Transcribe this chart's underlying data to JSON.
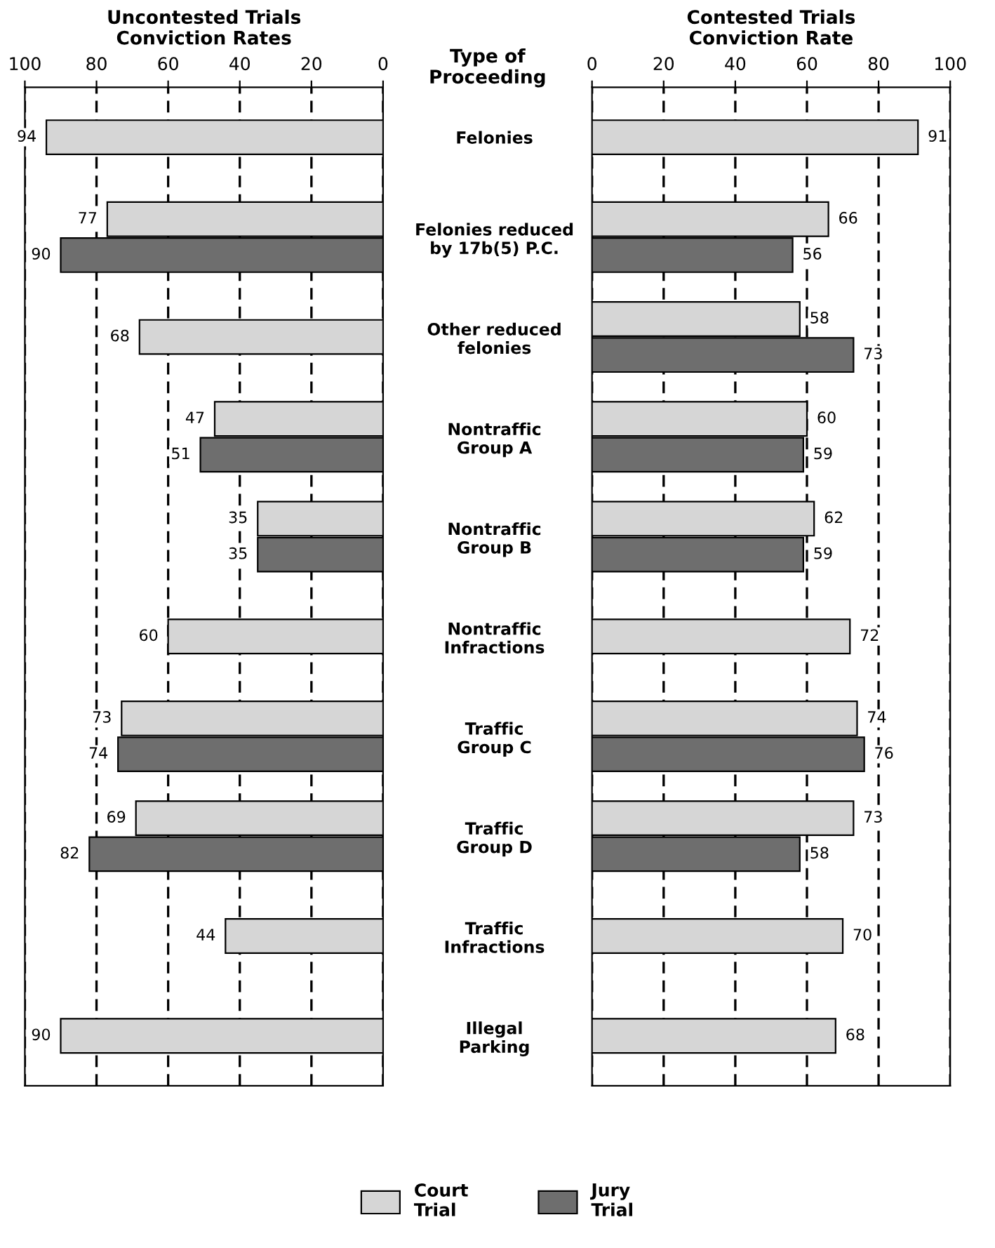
{
  "chart_data": [
    {
      "type": "bar",
      "orientation": "horizontal",
      "title": "Uncontested Trials\nConviction Rates",
      "ylabel": "Type of\nProceeding",
      "categories": [
        "Felonies",
        "Felonies reduced\nby 17b(5) P.C.",
        "Other reduced\nfelonies",
        "Nontraffic\nGroup A",
        "Nontraffic\nGroup B",
        "Nontraffic\nInfractions",
        "Traffic\nGroup C",
        "Traffic\nGroup D",
        "Traffic\nInfractions",
        "Illegal\nParking"
      ],
      "series": [
        {
          "name": "Court\nTrial",
          "color": "#d6d6d6",
          "values": [
            94,
            77,
            68,
            47,
            35,
            60,
            73,
            69,
            44,
            90
          ]
        },
        {
          "name": "Jury\nTrial",
          "color": "#6e6e6e",
          "values": [
            null,
            90,
            null,
            51,
            35,
            null,
            74,
            82,
            null,
            null
          ]
        }
      ],
      "xlim": [
        100,
        0
      ],
      "xticks": [
        100,
        80,
        60,
        40,
        20,
        0
      ],
      "grid": "x",
      "data_labels": true,
      "legend": "bottom"
    },
    {
      "type": "bar",
      "orientation": "horizontal",
      "title": "Contested Trials\nConviction Rate",
      "categories": [
        null,
        null,
        null,
        null,
        null,
        null,
        null,
        null,
        null,
        null
      ],
      "series": [
        {
          "color": "#d6d6d6",
          "values": [
            91,
            66,
            58,
            60,
            62,
            72,
            74,
            73,
            70,
            68
          ]
        },
        {
          "color": "#6e6e6e",
          "values": [
            null,
            56,
            73,
            59,
            59,
            null,
            76,
            58,
            null,
            null
          ]
        }
      ],
      "xlim": [
        0,
        100
      ],
      "xticks": [
        0,
        20,
        40,
        60,
        80,
        100
      ],
      "grid": "x",
      "data_labels": true
    }
  ]
}
